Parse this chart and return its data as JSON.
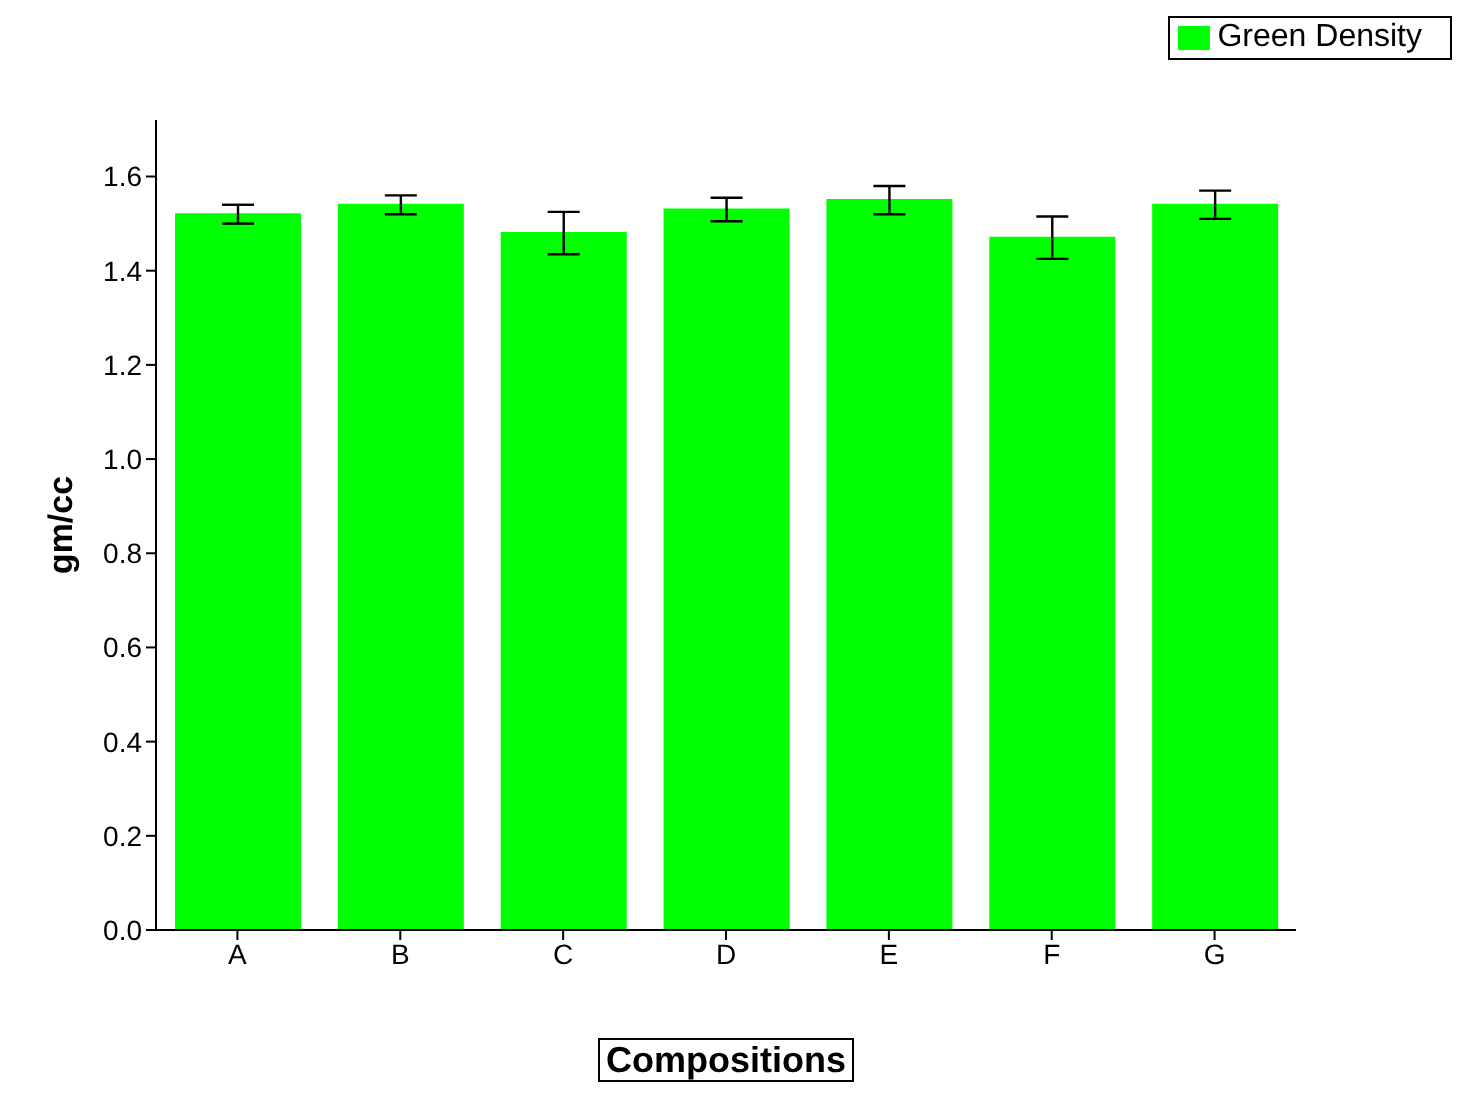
{
  "chart_data": {
    "type": "bar",
    "xlabel": "Compositions",
    "ylabel": "gm/cc",
    "categories": [
      "A",
      "B",
      "C",
      "D",
      "E",
      "F",
      "G"
    ],
    "series": [
      {
        "name": "Green Density",
        "color": "#00ff00",
        "values": [
          1.52,
          1.54,
          1.48,
          1.53,
          1.55,
          1.47,
          1.54
        ],
        "errors": [
          0.02,
          0.02,
          0.045,
          0.025,
          0.03,
          0.045,
          0.03
        ]
      }
    ],
    "ylim": [
      0,
      1.72
    ],
    "yticks": [
      {
        "value": 0,
        "label": "0.0"
      },
      {
        "value": 0.2,
        "label": "0.2"
      },
      {
        "value": 0.4,
        "label": "0.4"
      },
      {
        "value": 0.6,
        "label": "0.6"
      },
      {
        "value": 0.8,
        "label": "0.8"
      },
      {
        "value": 1,
        "label": "1.0"
      },
      {
        "value": 1.2,
        "label": "1.2"
      },
      {
        "value": 1.4,
        "label": "1.4"
      },
      {
        "value": 1.6,
        "label": "1.6"
      }
    ],
    "grid": false,
    "legend": "top right"
  }
}
